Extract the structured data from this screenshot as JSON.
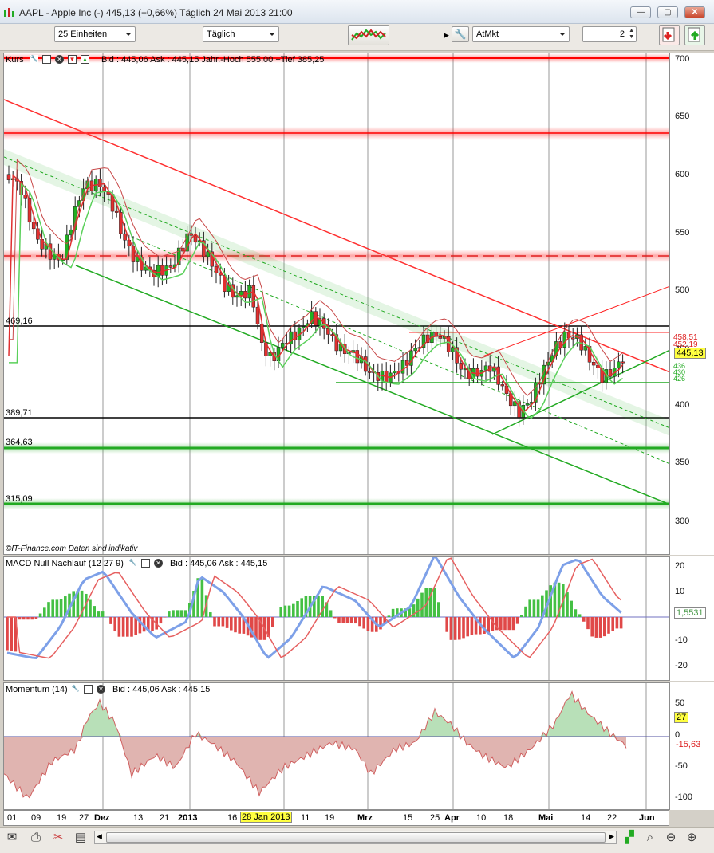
{
  "window": {
    "title": "AAPL - Apple Inc (-)    445,13 (+0,66%)    Täglich  24 Mai 2013 21:00",
    "buttons": [
      "minimize",
      "maximize",
      "close"
    ]
  },
  "toolbar": {
    "units_select": "25 Einheiten",
    "period_select": "Täglich",
    "order_type_select": "AtMkt",
    "quantity": "2"
  },
  "price_panel": {
    "name": "Kurs",
    "bidask": "Bid : 445,06 Ask : 445,15 Jahr.-Hoch 555,00 +Tief 385,25",
    "watermark": "©IT-Finance.com  Daten sind indikativ",
    "axis_ticks": [
      "700",
      "650",
      "600",
      "550",
      "500",
      "450",
      "400",
      "350",
      "300"
    ],
    "level_labels": [
      "469,16",
      "389,71",
      "364,63",
      "315,09"
    ],
    "last_price": "445,13",
    "side_labels": [
      "458,51",
      "452,19",
      "436",
      "430",
      "426"
    ]
  },
  "macd_panel": {
    "name": "MACD Null Nachlauf (12 27 9)",
    "bidask": "Bid : 445,06 Ask : 445,15",
    "axis_ticks": [
      "20",
      "10",
      "0",
      "-10",
      "-20"
    ],
    "value": "1,5531"
  },
  "momentum_panel": {
    "name": "Momentum (14)",
    "bidask": "Bid : 445,06 Ask : 445,15",
    "axis_ticks": [
      "50",
      "0",
      "-50",
      "-100"
    ],
    "value_a": "27",
    "value_b": "-15,63"
  },
  "xaxis": {
    "labels": [
      "01",
      "09",
      "19",
      "27",
      "Dez",
      "13",
      "21",
      "2013",
      "16",
      "28 Jan 2013",
      "11",
      "19",
      "Mrz",
      "15",
      "25",
      "Apr",
      "10",
      "18",
      "Mai",
      "14",
      "22",
      "Jun"
    ]
  },
  "colors": {
    "bull": "#22b022",
    "bear": "#e23030",
    "resistance": "#ff0000",
    "support": "#22aa22"
  }
}
